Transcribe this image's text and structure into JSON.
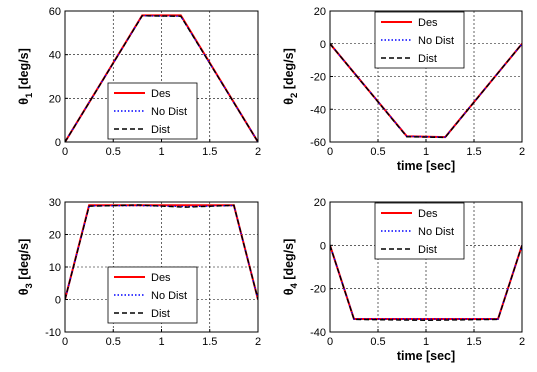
{
  "chart_data": [
    {
      "type": "line",
      "ylabel": "θ1 [deg/s]",
      "ylabel_sym": "θ",
      "ylabel_sub": "1",
      "ylabel_unit": " [deg/s]",
      "xlabel": "",
      "xlim": [
        0,
        2
      ],
      "ylim": [
        0,
        60
      ],
      "xticks": [
        "0",
        "0.5",
        "1",
        "1.5",
        "2"
      ],
      "yticks": [
        "0",
        "20",
        "40",
        "60"
      ],
      "grid": true,
      "legend_position": "bottom-center",
      "series": [
        {
          "name": "Des",
          "color": "#ff0000",
          "style": "solid",
          "x": [
            0,
            0.8,
            1.2,
            2
          ],
          "y": [
            0,
            58,
            58,
            0
          ]
        },
        {
          "name": "No Dist",
          "color": "#0000ff",
          "style": "dotted",
          "x": [
            0,
            0.8,
            1.2,
            2
          ],
          "y": [
            0,
            57.8,
            57.6,
            0
          ]
        },
        {
          "name": "Dist",
          "color": "#000000",
          "style": "dashed",
          "x": [
            0,
            0.8,
            1.2,
            2
          ],
          "y": [
            0,
            57.8,
            57.6,
            0
          ]
        }
      ]
    },
    {
      "type": "line",
      "ylabel": "θ2 [deg/s]",
      "ylabel_sym": "θ",
      "ylabel_sub": "2",
      "ylabel_unit": " [deg/s]",
      "xlabel": "time [sec]",
      "xlim": [
        0,
        2
      ],
      "ylim": [
        -60,
        20
      ],
      "xticks": [
        "0",
        "0.5",
        "1",
        "1.5",
        "2"
      ],
      "yticks": [
        "-60",
        "-40",
        "-20",
        "0",
        "20"
      ],
      "grid": true,
      "legend_position": "top-center",
      "series": [
        {
          "name": "Des",
          "color": "#ff0000",
          "style": "solid",
          "x": [
            0,
            0.8,
            1.2,
            2
          ],
          "y": [
            0,
            -56.5,
            -57,
            0
          ]
        },
        {
          "name": "No Dist",
          "color": "#0000ff",
          "style": "dotted",
          "x": [
            0,
            0.8,
            1.2,
            2
          ],
          "y": [
            0,
            -56.5,
            -57,
            0
          ]
        },
        {
          "name": "Dist",
          "color": "#000000",
          "style": "dashed",
          "x": [
            0,
            0.8,
            1.2,
            2
          ],
          "y": [
            0,
            -56.8,
            -57.2,
            0
          ]
        }
      ]
    },
    {
      "type": "line",
      "ylabel": "θ3 [deg/s]",
      "ylabel_sym": "θ",
      "ylabel_sub": "3",
      "ylabel_unit": " [deg/s]",
      "xlabel": "",
      "xlim": [
        0,
        2
      ],
      "ylim": [
        -10,
        30
      ],
      "xticks": [
        "0",
        "0.5",
        "1",
        "1.5",
        "2"
      ],
      "yticks": [
        "-10",
        "0",
        "10",
        "20",
        "30"
      ],
      "grid": true,
      "legend_position": "bottom-center",
      "series": [
        {
          "name": "Des",
          "color": "#ff0000",
          "style": "solid",
          "x": [
            0,
            0.25,
            1.75,
            2
          ],
          "y": [
            0,
            29,
            29,
            0
          ]
        },
        {
          "name": "No Dist",
          "color": "#0000ff",
          "style": "dotted",
          "x": [
            0,
            0.25,
            0.75,
            1.25,
            1.75,
            2
          ],
          "y": [
            0,
            28.8,
            28.9,
            28.6,
            28.9,
            0
          ]
        },
        {
          "name": "Dist",
          "color": "#000000",
          "style": "dashed",
          "x": [
            0,
            0.25,
            0.75,
            1.25,
            1.75,
            2
          ],
          "y": [
            0,
            28.7,
            29.1,
            28.4,
            29,
            0
          ]
        }
      ]
    },
    {
      "type": "line",
      "ylabel": "θ4 [deg/s]",
      "ylabel_sym": "θ",
      "ylabel_sub": "4",
      "ylabel_unit": " [deg/s]",
      "xlabel": "time [sec]",
      "xlim": [
        0,
        2
      ],
      "ylim": [
        -40,
        20
      ],
      "xticks": [
        "0",
        "0.5",
        "1",
        "1.5",
        "2"
      ],
      "yticks": [
        "-40",
        "-20",
        "0",
        "20"
      ],
      "grid": true,
      "legend_position": "top-center",
      "series": [
        {
          "name": "Des",
          "color": "#ff0000",
          "style": "solid",
          "x": [
            0,
            0.25,
            1.75,
            2
          ],
          "y": [
            0,
            -34,
            -34,
            0
          ]
        },
        {
          "name": "No Dist",
          "color": "#0000ff",
          "style": "dotted",
          "x": [
            0,
            0.25,
            1.75,
            2
          ],
          "y": [
            0,
            -34,
            -34,
            0
          ]
        },
        {
          "name": "Dist",
          "color": "#000000",
          "style": "dashed",
          "x": [
            0,
            0.25,
            1.0,
            1.75,
            2
          ],
          "y": [
            0,
            -34.2,
            -34.6,
            -34.2,
            0
          ]
        }
      ]
    }
  ]
}
